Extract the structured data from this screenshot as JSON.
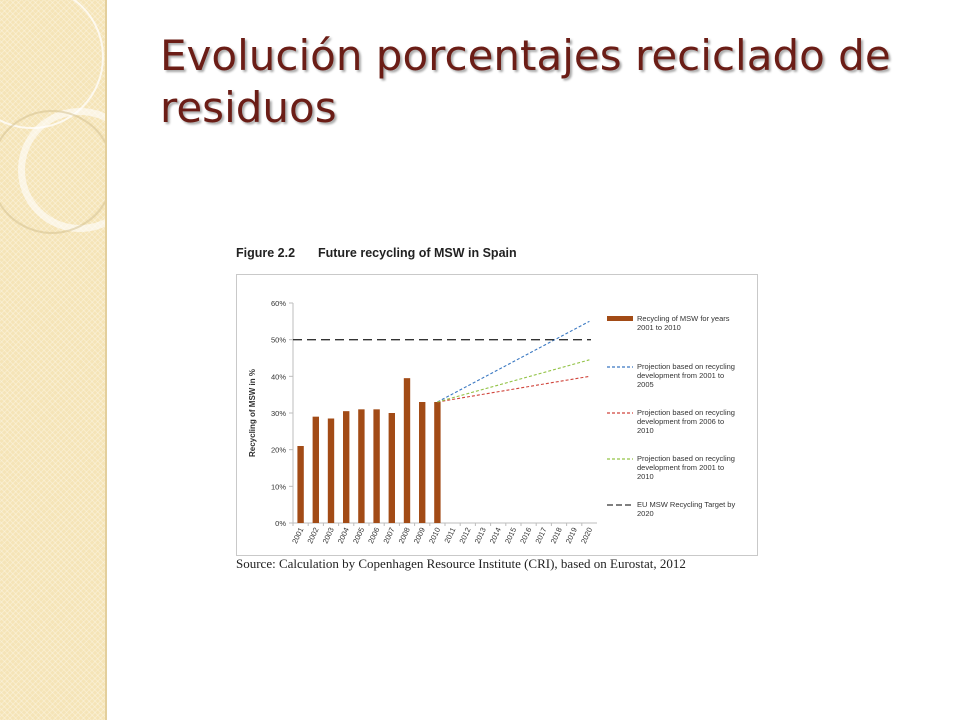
{
  "slide": {
    "title": "Evolución porcentajes reciclado de residuos"
  },
  "figure": {
    "number": "Figure 2.2",
    "title": "Future recycling of MSW in Spain",
    "source": "Source: Calculation by Copenhagen Resource Institute (CRI), based on Eurostat, 2012"
  },
  "colors": {
    "title": "#6b1d16",
    "bars": "#a24b16",
    "proj_2001_2005": "#3a78c2",
    "proj_2006_2010": "#d0453c",
    "proj_2001_2010": "#93c347",
    "target": "#333333"
  },
  "chart_data": {
    "type": "bar",
    "title": "Future recycling of MSW in Spain",
    "ylabel": "Recycling of MSW in %",
    "xlabel": "",
    "ylim": [
      0,
      60
    ],
    "yticks": [
      "0%",
      "10%",
      "20%",
      "30%",
      "40%",
      "50%",
      "60%"
    ],
    "grid": false,
    "legend_position": "right",
    "categories": [
      "2001",
      "2002",
      "2003",
      "2004",
      "2005",
      "2006",
      "2007",
      "2008",
      "2009",
      "2010",
      "2011",
      "2012",
      "2013",
      "2014",
      "2015",
      "2016",
      "2017",
      "2018",
      "2019",
      "2020"
    ],
    "series": [
      {
        "name": "Recycling of MSW for years 2001 to 2010",
        "kind": "bar",
        "x": [
          "2001",
          "2002",
          "2003",
          "2004",
          "2005",
          "2006",
          "2007",
          "2008",
          "2009",
          "2010"
        ],
        "values": [
          21,
          29,
          28.5,
          30.5,
          31,
          31,
          30,
          39.5,
          33,
          33
        ]
      },
      {
        "name": "Projection based on recycling development from 2001 to 2005",
        "kind": "dashed-line",
        "x": [
          "2010",
          "2020"
        ],
        "values": [
          33,
          55
        ]
      },
      {
        "name": "Projection based on recycling development from 2006 to 2010",
        "kind": "dashed-line",
        "x": [
          "2010",
          "2020"
        ],
        "values": [
          33,
          40
        ]
      },
      {
        "name": "Projection based on recycling development from 2001 to 2010",
        "kind": "dashed-line",
        "x": [
          "2010",
          "2020"
        ],
        "values": [
          33,
          44.5
        ]
      },
      {
        "name": "EU MSW Recycling Target by 2020",
        "kind": "dashed-line",
        "x": [
          "2001",
          "2020"
        ],
        "values": [
          50,
          50
        ]
      }
    ]
  }
}
